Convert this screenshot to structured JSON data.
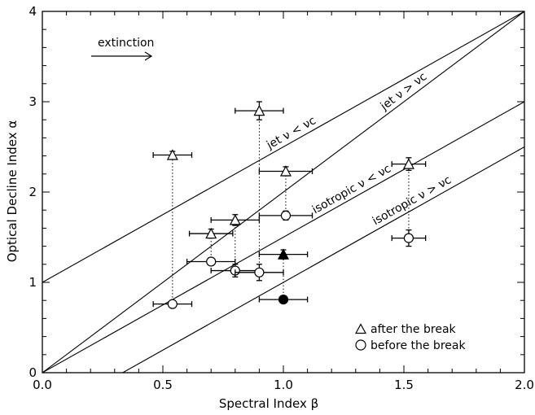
{
  "chart_data": {
    "type": "scatter",
    "title": "",
    "xlabel": "Spectral Index β",
    "ylabel": "Optical Decline Index α",
    "xlim": [
      0,
      2
    ],
    "ylim": [
      0,
      4
    ],
    "x_ticks": [
      "0.0",
      "0.5",
      "1.0",
      "1.5",
      "2.0"
    ],
    "y_ticks": [
      "0",
      "1",
      "2",
      "3",
      "4"
    ],
    "grid": false,
    "legend_placement": "bottom-right",
    "legend": [
      "after the break",
      "before the break"
    ],
    "annotation": {
      "text": "extinction",
      "arrow_direction": "right"
    },
    "model_lines": [
      {
        "label": "jet ν < νc",
        "slope": 1.5,
        "intercept": 1.0
      },
      {
        "label": "jet ν > νc",
        "slope": 1.5,
        "intercept": 0.0
      },
      {
        "label": "isotropic ν < νc",
        "slope": 1.5,
        "intercept": 0.0,
        "slope_note": "alpha = 3/2 beta"
      },
      {
        "label": "isotropic ν > νc",
        "slope": 1.5,
        "intercept": -0.5
      }
    ],
    "series": [
      {
        "name": "after the break",
        "marker": "triangle",
        "points": [
          {
            "x": 0.54,
            "y": 2.41,
            "xerr": 0.08,
            "yerr": 0.04,
            "filled": false
          },
          {
            "x": 0.9,
            "y": 2.9,
            "xerr": 0.1,
            "yerr": 0.1,
            "filled": false
          },
          {
            "x": 1.01,
            "y": 2.23,
            "xerr": 0.11,
            "yerr": 0.05,
            "filled": false
          },
          {
            "x": 1.52,
            "y": 2.31,
            "xerr": 0.07,
            "yerr": 0.07,
            "filled": false
          },
          {
            "x": 0.8,
            "y": 1.69,
            "xerr": 0.1,
            "yerr": 0.06,
            "filled": false
          },
          {
            "x": 0.7,
            "y": 1.54,
            "xerr": 0.09,
            "yerr": 0.05,
            "filled": false
          },
          {
            "x": 1.0,
            "y": 1.31,
            "xerr": 0.1,
            "yerr": 0.05,
            "filled": true
          }
        ]
      },
      {
        "name": "before the break",
        "marker": "circle",
        "points": [
          {
            "x": 0.54,
            "y": 0.76,
            "xerr": 0.08,
            "yerr": 0.02,
            "filled": false
          },
          {
            "x": 0.7,
            "y": 1.23,
            "xerr": 0.1,
            "yerr": 0.04,
            "filled": false
          },
          {
            "x": 0.8,
            "y": 1.13,
            "xerr": 0.1,
            "yerr": 0.07,
            "filled": false
          },
          {
            "x": 0.9,
            "y": 1.11,
            "xerr": 0.1,
            "yerr": 0.09,
            "filled": false
          },
          {
            "x": 1.01,
            "y": 1.74,
            "xerr": 0.11,
            "yerr": 0.05,
            "filled": false
          },
          {
            "x": 1.52,
            "y": 1.49,
            "xerr": 0.07,
            "yerr": 0.09,
            "filled": false
          },
          {
            "x": 1.0,
            "y": 0.81,
            "xerr": 0.1,
            "yerr": 0.03,
            "filled": true
          }
        ]
      }
    ],
    "connectors": [
      {
        "x": 0.54,
        "y_from": 0.76,
        "y_to": 2.41
      },
      {
        "x": 0.7,
        "y_from": 1.23,
        "y_to": 1.54
      },
      {
        "x": 0.8,
        "y_from": 1.13,
        "y_to": 1.69
      },
      {
        "x": 0.9,
        "y_from": 1.11,
        "y_to": 2.9
      },
      {
        "x": 1.01,
        "y_from": 1.74,
        "y_to": 2.23
      },
      {
        "x": 1.52,
        "y_from": 1.49,
        "y_to": 2.31
      },
      {
        "x": 1.0,
        "y_from": 0.81,
        "y_to": 1.31
      }
    ]
  }
}
